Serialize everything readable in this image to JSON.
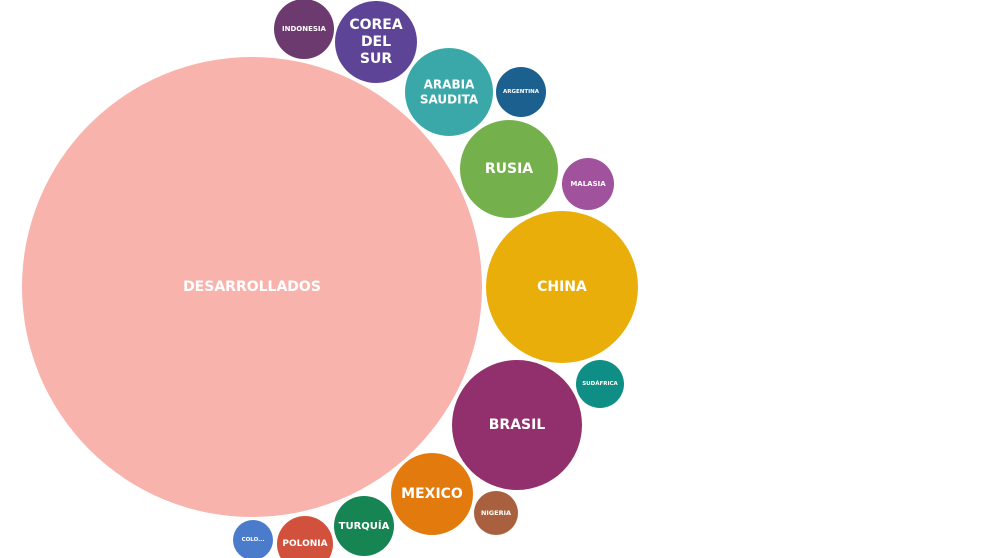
{
  "chart_data": {
    "type": "bubble",
    "title": "",
    "bubbles": [
      {
        "label": "DESARROLLADOS",
        "color": "#F9B3AD"
      },
      {
        "label": "CHINA",
        "color": "#EAAE0B"
      },
      {
        "label": "BRASIL",
        "color": "#91306C"
      },
      {
        "label": "RUSIA",
        "color": "#74B04C"
      },
      {
        "label": "COREA DEL SUR",
        "color": "#5D4496"
      },
      {
        "label": "ARABIA SAUDITA",
        "color": "#3AA8A8"
      },
      {
        "label": "MEXICO",
        "color": "#E37A0E"
      },
      {
        "label": "TURQUÍA",
        "color": "#178553"
      },
      {
        "label": "POLONIA",
        "color": "#D2513C"
      },
      {
        "label": "INDONESIA",
        "color": "#6D3A70"
      },
      {
        "label": "ARGENTINA",
        "color": "#1C6090"
      },
      {
        "label": "MALASIA",
        "color": "#A0529C"
      },
      {
        "label": "SUDÁFRICA",
        "color": "#0E8E85"
      },
      {
        "label": "NIGERIA",
        "color": "#A9603E"
      },
      {
        "label": "COLO...",
        "color": "#4B7CCB"
      }
    ]
  }
}
